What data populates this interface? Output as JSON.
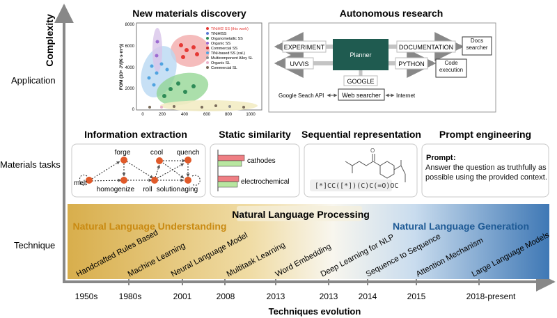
{
  "axes": {
    "y_label": "Complexity",
    "x_label": "Techniques evolution",
    "rows": [
      "Application",
      "Materials tasks",
      "Technique"
    ],
    "timeline": [
      "1950s",
      "1980s",
      "2001",
      "2008",
      "2013",
      "2013",
      "2014",
      "2015",
      "2018-present"
    ]
  },
  "application": {
    "materials_discovery": {
      "title": "New materials discovery",
      "y_axis": "FOM (10⁵ J²/(K·s·m⁴))",
      "y_ticks": [
        "0",
        "2000",
        "4000",
        "6000",
        "8000"
      ],
      "x_ticks": [
        "0",
        "200",
        "400",
        "600",
        "800",
        "1000"
      ],
      "legend": [
        {
          "label": "TiNiHf2 SS (this work)",
          "color": "#e53935"
        },
        {
          "label": "TiNiHfSS",
          "color": "#5b7bd5"
        },
        {
          "label": "Organometallic SS",
          "color": "#2e8b57"
        },
        {
          "label": "Organic SS",
          "color": "#9c6ad0"
        },
        {
          "label": "Commercial SS",
          "color": "#c62828"
        },
        {
          "label": "TiNi-based SS (cal.)",
          "color": "#4fa3e0"
        },
        {
          "label": "Multicomponent Alloy SL",
          "color": "#8e8e8e"
        },
        {
          "label": "Organic SL",
          "color": "#e8b0c8"
        },
        {
          "label": "Commercial SL",
          "color": "#7a6b5a"
        }
      ]
    },
    "autonomous_research": {
      "title": "Autonomous research",
      "nodes": {
        "experiment": "EXPERIMENT",
        "documentation": "DOCUMENTATION",
        "docs_searcher": "Docs searcher",
        "uvvis": "UVVIS",
        "planner": "Planner",
        "python": "PYTHON",
        "code_execution": "Code execution",
        "google": "GOOGLE",
        "web_searcher": "Web searcher",
        "google_api": "Google Seach API",
        "internet": "Internet"
      }
    }
  },
  "tasks": {
    "information_extraction": {
      "title": "Information extraction",
      "nodes": [
        "melt",
        "forge",
        "homogenize",
        "roll",
        "cool",
        "solution",
        "quench",
        "aging"
      ]
    },
    "static_similarity": {
      "title": "Static similarity",
      "labels": [
        "cathodes",
        "electrochemical"
      ]
    },
    "sequential_representation": {
      "title": "Sequential representation",
      "smiles": "[*]CC([*])(C)C(=O)OC"
    },
    "prompt_engineering": {
      "title": "Prompt engineering",
      "prompt_label": "Prompt",
      "prompt_text": "Answer the question as truthfully as possible using the provided context."
    }
  },
  "technique": {
    "nlp": "Natural Language Processing",
    "nlu": "Natural Language Understanding",
    "nlg": "Natural Language Generation",
    "items": [
      "Handcrafted Rules Based",
      "Machine Learning",
      "Neural Language Model",
      "Multitask Learning",
      "Word Embedding",
      "Deep Learning for NLP",
      "Sequence to Sequence",
      "Attention Mechanism",
      "Large Language Models"
    ]
  },
  "colors": {
    "nlu_band": "#d9b45a",
    "nlg_band": "#3f78b5",
    "accent_orange": "#e05a2a",
    "planner": "#1f5b50",
    "nlu_text": "#c98a12",
    "nlg_text": "#1e5a95"
  }
}
